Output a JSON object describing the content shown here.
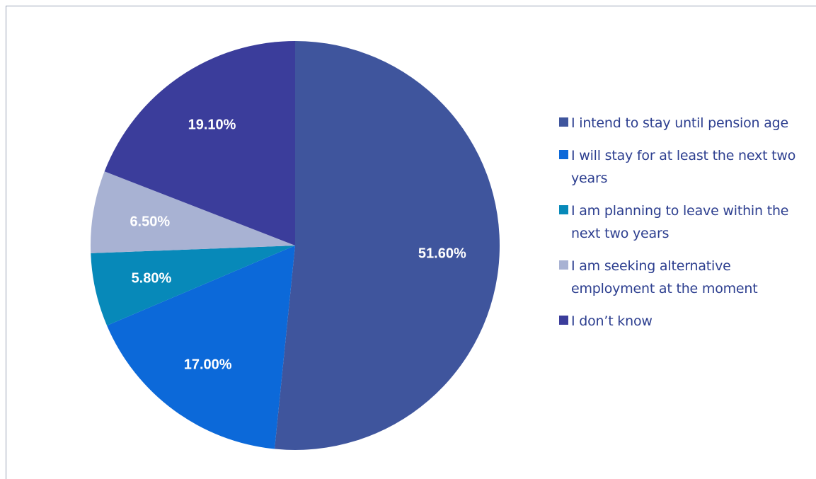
{
  "chart_data": {
    "type": "pie",
    "title": "",
    "start_angle_deg": 0,
    "direction": "clockwise",
    "legend_position": "right",
    "slices": [
      {
        "label": "I intend to stay until pension age",
        "value": 51.6,
        "value_label": "51.60%",
        "color": "#3f559d"
      },
      {
        "label": "I will stay for at least the next two years",
        "value": 17.0,
        "value_label": "17.00%",
        "color": "#0c69d9"
      },
      {
        "label": "I am planning to leave within the next two years",
        "value": 5.8,
        "value_label": "5.80%",
        "color": "#0789b9"
      },
      {
        "label": "I am seeking alternative employment at the moment",
        "value": 6.5,
        "value_label": "6.50%",
        "color": "#a8b2d3"
      },
      {
        "label": "I don’t know",
        "value": 19.1,
        "value_label": "19.10%",
        "color": "#3b3d9b"
      }
    ]
  }
}
